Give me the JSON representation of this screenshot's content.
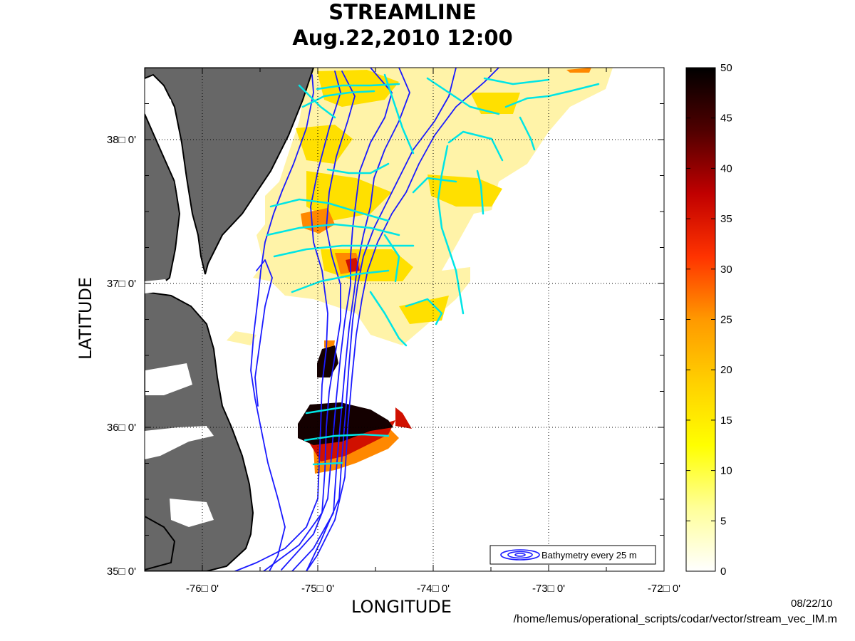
{
  "title": {
    "line1": "STREAMLINE",
    "line2": "Aug.22,2010 12:00"
  },
  "xlabel": "LONGITUDE",
  "ylabel": "LATITUDE",
  "x_ticks": [
    {
      "lon": -76,
      "label": "-76□ 0'"
    },
    {
      "lon": -75,
      "label": "-75□ 0'"
    },
    {
      "lon": -74,
      "label": "-74□ 0'"
    },
    {
      "lon": -73,
      "label": "-73□ 0'"
    },
    {
      "lon": -72,
      "label": "-72□ 0'"
    }
  ],
  "y_ticks": [
    {
      "lat": 35,
      "label": "35□ 0'"
    },
    {
      "lat": 36,
      "label": "36□ 0'"
    },
    {
      "lat": 37,
      "label": "37□ 0'"
    },
    {
      "lat": 38,
      "label": "38□ 0'"
    }
  ],
  "colorbar": {
    "ticks": [
      0,
      5,
      10,
      15,
      20,
      25,
      30,
      35,
      40,
      45,
      50
    ],
    "stops": [
      "#ffffff",
      "#ffff99",
      "#ffff00",
      "#ffd000",
      "#ff9900",
      "#ff3300",
      "#c00000",
      "#500000",
      "#000000"
    ]
  },
  "legend": {
    "label": "Bathymetry every 25 m"
  },
  "footer": {
    "date": "08/22/10",
    "path": "/home/lemus/operational_scripts/codar/vector/stream_vec_IM.m"
  },
  "colors": {
    "land": "#676767",
    "coast": "#000000",
    "bathymetry": "#1a1aff",
    "streamline": "#00e5e5",
    "light_yellow": "#fff3a8",
    "yellow": "#ffe000",
    "orange": "#ff8800",
    "red": "#d01000",
    "dark": "#140000"
  }
}
